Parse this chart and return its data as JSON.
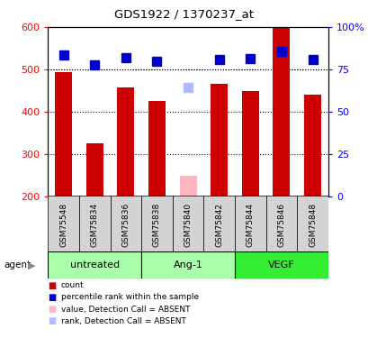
{
  "title": "GDS1922 / 1370237_at",
  "samples": [
    "GSM75548",
    "GSM75834",
    "GSM75836",
    "GSM75838",
    "GSM75840",
    "GSM75842",
    "GSM75844",
    "GSM75846",
    "GSM75848"
  ],
  "bar_values": [
    493,
    325,
    457,
    425,
    null,
    465,
    448,
    600,
    440
  ],
  "bar_values_absent": [
    null,
    null,
    null,
    null,
    248,
    null,
    null,
    null,
    null
  ],
  "rank_values": [
    533,
    510,
    527,
    519,
    null,
    524,
    526,
    542,
    523
  ],
  "rank_values_absent": [
    null,
    null,
    null,
    null,
    457,
    null,
    null,
    null,
    null
  ],
  "bar_color": "#cc0000",
  "bar_color_absent": "#ffb6c1",
  "rank_color": "#0000cc",
  "rank_color_absent": "#b0b8ff",
  "ylim_left": [
    200,
    600
  ],
  "yticks_left": [
    200,
    300,
    400,
    500,
    600
  ],
  "ytick_labels_right": [
    "0",
    "25",
    "50",
    "75",
    "100%"
  ],
  "right_tick_positions": [
    200,
    300,
    400,
    500,
    600
  ],
  "group_info": [
    {
      "start": 0,
      "end": 2,
      "label": "untreated",
      "color": "#aaffaa"
    },
    {
      "start": 3,
      "end": 5,
      "label": "Ang-1",
      "color": "#aaffaa"
    },
    {
      "start": 6,
      "end": 8,
      "label": "VEGF",
      "color": "#33ee33"
    }
  ],
  "bar_width": 0.55,
  "rank_marker_size": 7,
  "legend_items": [
    {
      "color": "#cc0000",
      "label": "count"
    },
    {
      "color": "#0000cc",
      "label": "percentile rank within the sample"
    },
    {
      "color": "#ffb6c1",
      "label": "value, Detection Call = ABSENT"
    },
    {
      "color": "#b0b8ff",
      "label": "rank, Detection Call = ABSENT"
    }
  ]
}
